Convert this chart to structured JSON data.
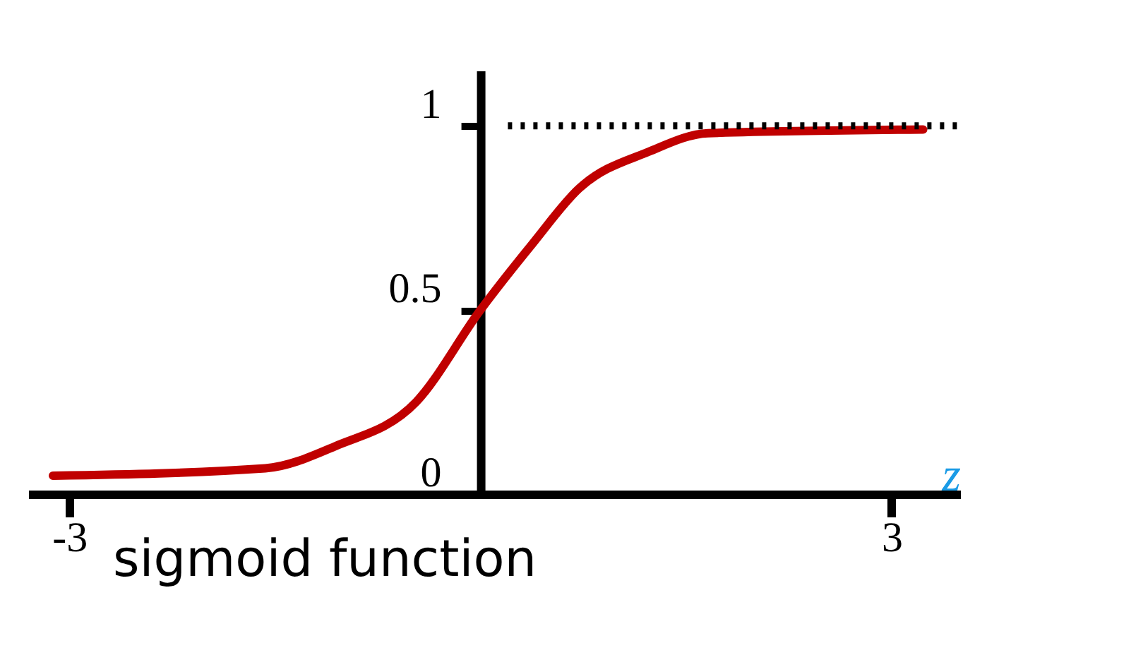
{
  "chart_data": {
    "type": "line",
    "xlabel": "z",
    "annotations": [
      "sigmoid function"
    ],
    "x": [
      -3.12,
      -1.57,
      -1.06,
      -0.47,
      0,
      0.38,
      0.72,
      1.23,
      1.66,
      3.23
    ],
    "series": [
      {
        "color": "#c00000",
        "values": [
          0.05,
          0.07,
          0.13,
          0.25,
          0.5,
          0.68,
          0.83,
          0.93,
          0.98,
          0.99
        ]
      }
    ],
    "xlim": [
      -3.3,
      3.5
    ],
    "ylim": [
      0,
      1.15
    ],
    "xticks": [
      -3,
      3
    ],
    "yticks": [
      0,
      0.5,
      1
    ],
    "ref_lines": [
      {
        "axis": "y",
        "value": 1,
        "line_style": "dotted",
        "color": "#000000"
      }
    ],
    "grid": false,
    "marker": "none",
    "line_style": "solid"
  }
}
